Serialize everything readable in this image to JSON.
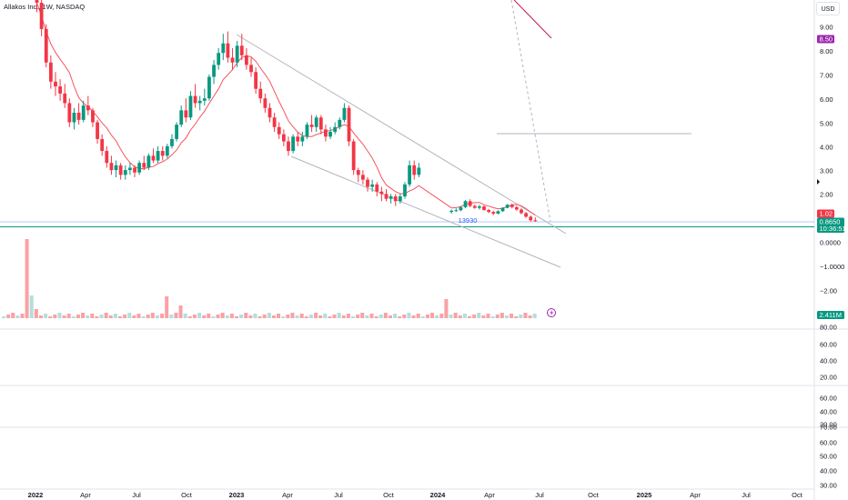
{
  "header": {
    "title": "Allakos Inc., 1W, NASDAQ",
    "currency": "USD"
  },
  "price_axis": {
    "ticks": [
      "9.00",
      "8.00",
      "7.00",
      "6.00",
      "5.00",
      "4.00",
      "3.00",
      "2.00",
      "0.0000",
      "−1.0000",
      "−2.00"
    ]
  },
  "badges": [
    {
      "text": "8.50",
      "color": "#9c27b0"
    },
    {
      "text": "1.02",
      "color": "#f23645"
    },
    {
      "text": "0.8650",
      "color": "#089981"
    },
    {
      "text": "10:36:51",
      "color": "#089981"
    },
    {
      "text": "2.411M",
      "color": "#089981"
    }
  ],
  "annotation": {
    "text": "13930",
    "color": "#2962ff"
  },
  "lightning_icon": "lightning-icon",
  "sub_panes": [
    {
      "ticks": [
        "80.00",
        "60.00",
        "40.00",
        "20.00"
      ]
    },
    {
      "ticks": [
        "60.00",
        "40.00",
        "20.00"
      ]
    },
    {
      "ticks": [
        "70.00",
        "60.00",
        "50.00",
        "40.00",
        "30.00"
      ]
    }
  ],
  "time_axis": {
    "labels": [
      "2022",
      "Apr",
      "Jul",
      "Oct",
      "2023",
      "Apr",
      "Jul",
      "Oct",
      "2024",
      "Apr",
      "Jul",
      "Oct",
      "2025",
      "Apr",
      "Jul",
      "Oct"
    ]
  },
  "colors": {
    "up": "#089981",
    "down": "#f23645",
    "up_volume": "#b2dfdb",
    "down_volume": "#faa1a4",
    "ma": "#f7525f",
    "trendline": "#b2b5be"
  },
  "chart_data": {
    "type": "candlestick",
    "symbol": "Allakos Inc.",
    "interval": "1W",
    "exchange": "NASDAQ",
    "x_start": "2021-12-20",
    "x_step_days": 7,
    "candles": [
      [
        10.8,
        11.4,
        9.6,
        10.0
      ],
      [
        10.0,
        10.2,
        8.6,
        8.9
      ],
      [
        8.9,
        9.1,
        7.3,
        7.5
      ],
      [
        7.5,
        7.8,
        6.4,
        6.7
      ],
      [
        6.7,
        7.1,
        6.1,
        6.5
      ],
      [
        6.5,
        6.8,
        5.9,
        6.2
      ],
      [
        6.2,
        6.6,
        5.6,
        5.8
      ],
      [
        5.8,
        6.0,
        4.8,
        5.0
      ],
      [
        5.0,
        5.6,
        4.7,
        5.4
      ],
      [
        5.4,
        5.8,
        4.9,
        5.1
      ],
      [
        5.1,
        5.9,
        5.0,
        5.7
      ],
      [
        5.7,
        6.1,
        5.3,
        5.5
      ],
      [
        5.5,
        5.6,
        4.8,
        5.0
      ],
      [
        5.0,
        5.1,
        4.1,
        4.3
      ],
      [
        4.3,
        4.5,
        3.6,
        3.8
      ],
      [
        3.8,
        4.0,
        3.1,
        3.3
      ],
      [
        3.3,
        3.6,
        2.8,
        3.0
      ],
      [
        3.0,
        3.4,
        2.7,
        3.2
      ],
      [
        3.2,
        3.3,
        2.6,
        2.8
      ],
      [
        2.8,
        3.2,
        2.6,
        3.0
      ],
      [
        3.0,
        3.3,
        2.8,
        3.1
      ],
      [
        3.1,
        3.2,
        2.7,
        2.9
      ],
      [
        2.9,
        3.4,
        2.8,
        3.3
      ],
      [
        3.3,
        3.6,
        3.0,
        3.1
      ],
      [
        3.1,
        3.7,
        3.0,
        3.6
      ],
      [
        3.6,
        3.9,
        3.3,
        3.4
      ],
      [
        3.4,
        4.0,
        3.3,
        3.8
      ],
      [
        3.8,
        4.0,
        3.4,
        3.6
      ],
      [
        3.6,
        4.1,
        3.5,
        4.0
      ],
      [
        4.0,
        4.5,
        3.9,
        4.3
      ],
      [
        4.3,
        5.0,
        4.2,
        4.9
      ],
      [
        4.9,
        5.7,
        4.8,
        5.5
      ],
      [
        5.5,
        6.0,
        5.0,
        5.2
      ],
      [
        5.2,
        6.3,
        5.1,
        6.1
      ],
      [
        6.1,
        6.6,
        5.6,
        5.8
      ],
      [
        5.8,
        6.1,
        5.5,
        5.9
      ],
      [
        5.9,
        6.4,
        5.7,
        6.0
      ],
      [
        6.0,
        7.0,
        5.9,
        6.9
      ],
      [
        6.9,
        7.6,
        6.6,
        7.4
      ],
      [
        7.4,
        8.1,
        7.2,
        7.9
      ],
      [
        7.9,
        8.7,
        7.6,
        8.3
      ],
      [
        8.3,
        8.8,
        7.5,
        7.7
      ],
      [
        7.7,
        8.1,
        7.2,
        7.5
      ],
      [
        7.5,
        8.4,
        7.3,
        8.2
      ],
      [
        8.2,
        8.7,
        7.6,
        7.8
      ],
      [
        7.8,
        8.1,
        7.2,
        7.4
      ],
      [
        7.4,
        7.7,
        6.9,
        7.1
      ],
      [
        7.1,
        7.3,
        6.2,
        6.4
      ],
      [
        6.4,
        6.7,
        5.8,
        6.0
      ],
      [
        6.0,
        6.2,
        5.4,
        5.6
      ],
      [
        5.6,
        5.8,
        5.0,
        5.2
      ],
      [
        5.2,
        5.4,
        4.6,
        4.8
      ],
      [
        4.8,
        5.0,
        4.3,
        4.5
      ],
      [
        4.5,
        4.7,
        4.0,
        4.2
      ],
      [
        4.2,
        4.4,
        3.6,
        3.8
      ],
      [
        3.8,
        4.5,
        3.7,
        4.4
      ],
      [
        4.4,
        4.6,
        4.0,
        4.2
      ],
      [
        4.2,
        4.6,
        4.0,
        4.4
      ],
      [
        4.4,
        5.0,
        4.3,
        4.9
      ],
      [
        4.9,
        5.3,
        4.6,
        4.8
      ],
      [
        4.8,
        5.3,
        4.6,
        5.2
      ],
      [
        5.2,
        5.3,
        4.5,
        4.7
      ],
      [
        4.7,
        4.9,
        4.2,
        4.4
      ],
      [
        4.4,
        4.8,
        4.3,
        4.6
      ],
      [
        4.6,
        5.0,
        4.5,
        4.8
      ],
      [
        4.8,
        5.2,
        4.7,
        5.1
      ],
      [
        5.1,
        5.8,
        5.0,
        5.6
      ],
      [
        5.6,
        5.7,
        4.0,
        4.2
      ],
      [
        4.2,
        4.3,
        2.8,
        3.0
      ],
      [
        3.0,
        3.1,
        2.5,
        2.8
      ],
      [
        2.8,
        3.0,
        2.4,
        2.6
      ],
      [
        2.6,
        2.7,
        2.1,
        2.3
      ],
      [
        2.3,
        2.6,
        2.1,
        2.4
      ],
      [
        2.4,
        2.5,
        1.9,
        2.1
      ],
      [
        2.1,
        2.3,
        1.7,
        2.0
      ],
      [
        2.0,
        2.2,
        1.7,
        1.8
      ],
      [
        1.8,
        2.0,
        1.6,
        1.9
      ],
      [
        1.9,
        2.0,
        1.5,
        1.7
      ],
      [
        1.7,
        2.0,
        1.6,
        1.9
      ],
      [
        1.9,
        2.5,
        1.8,
        2.4
      ],
      [
        2.4,
        3.4,
        2.3,
        3.2
      ],
      [
        3.2,
        3.4,
        2.6,
        2.8
      ],
      [
        2.8,
        3.3,
        2.7,
        3.1
      ]
    ],
    "late_candles": [
      [
        1.25,
        1.35,
        1.18,
        1.3
      ],
      [
        1.3,
        1.4,
        1.25,
        1.32
      ],
      [
        1.32,
        1.5,
        1.28,
        1.45
      ],
      [
        1.45,
        1.75,
        1.4,
        1.7
      ],
      [
        1.7,
        1.78,
        1.45,
        1.5
      ],
      [
        1.5,
        1.55,
        1.38,
        1.42
      ],
      [
        1.42,
        1.55,
        1.35,
        1.48
      ],
      [
        1.48,
        1.52,
        1.3,
        1.33
      ],
      [
        1.33,
        1.38,
        1.2,
        1.25
      ],
      [
        1.25,
        1.3,
        1.12,
        1.18
      ],
      [
        1.18,
        1.32,
        1.15,
        1.28
      ],
      [
        1.28,
        1.45,
        1.25,
        1.42
      ],
      [
        1.42,
        1.58,
        1.4,
        1.55
      ],
      [
        1.55,
        1.6,
        1.4,
        1.45
      ],
      [
        1.45,
        1.5,
        1.3,
        1.35
      ],
      [
        1.35,
        1.4,
        1.15,
        1.2
      ],
      [
        1.2,
        1.25,
        1.0,
        1.05
      ],
      [
        1.05,
        1.1,
        0.85,
        0.9
      ],
      [
        0.9,
        1.02,
        0.84,
        0.865
      ]
    ],
    "annotation": "13930",
    "price_range": [
      -2.6,
      9.7
    ]
  }
}
